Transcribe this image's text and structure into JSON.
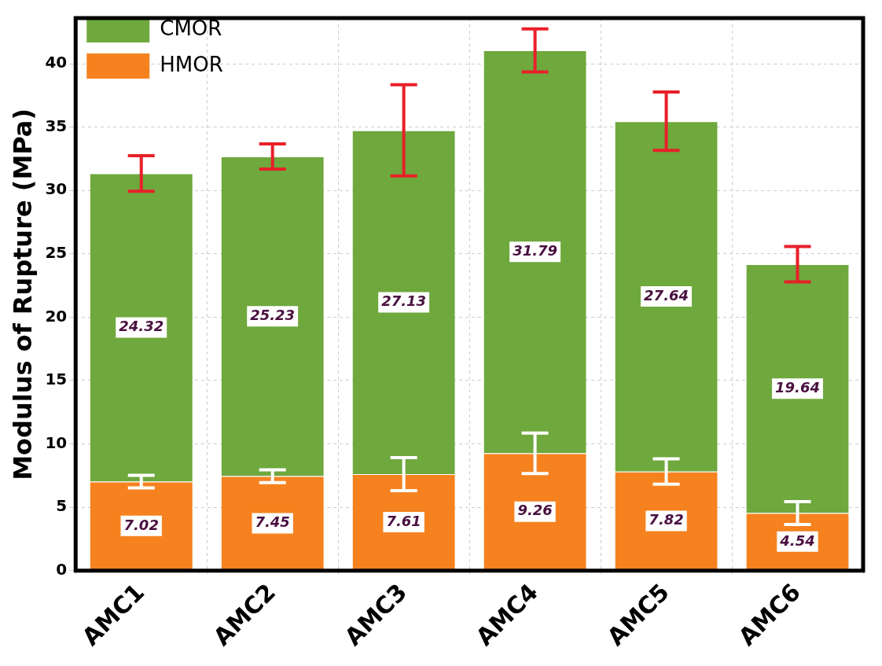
{
  "chart_data": {
    "type": "bar",
    "ylabel": "Modulus of Rupture (MPa)",
    "categories": [
      "AMC1",
      "AMC2",
      "AMC3",
      "AMC4",
      "AMC5",
      "AMC6"
    ],
    "stacked": true,
    "series": [
      {
        "name": "HMOR",
        "color": "#f5821f",
        "values": [
          7.02,
          7.45,
          7.61,
          9.26,
          7.82,
          4.54
        ],
        "errors": [
          0.5,
          0.5,
          1.3,
          1.6,
          1.0,
          0.9
        ]
      },
      {
        "name": "CMOR",
        "color": "#6fa83d",
        "values": [
          24.32,
          25.23,
          27.13,
          31.79,
          27.64,
          19.64
        ],
        "errors": [
          1.4,
          1.0,
          3.6,
          1.7,
          2.3,
          1.4
        ]
      }
    ],
    "ylim": [
      0,
      43.6
    ],
    "yticks": [
      0,
      5,
      10,
      15,
      20,
      25,
      30,
      35,
      40
    ],
    "grid": true,
    "legend": "top left",
    "data_labels": true
  }
}
